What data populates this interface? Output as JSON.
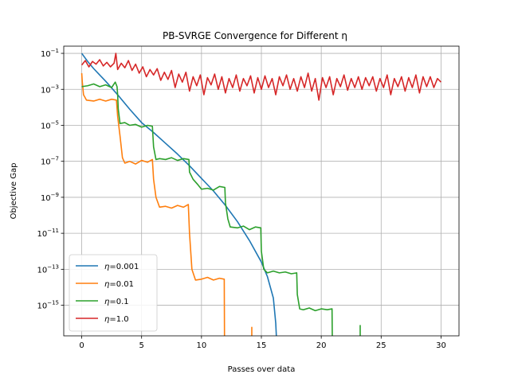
{
  "chart_data": {
    "type": "line",
    "title": "PB-SVRGE Convergence for Different η",
    "xlabel": "Passes over data",
    "ylabel": "Objective Gap",
    "xlim": [
      -1.5,
      31.5
    ],
    "ylim_log10": [
      -16.7,
      -0.6
    ],
    "yscale": "log",
    "grid": true,
    "legend_position": "lower-left",
    "x_ticks": [
      0,
      5,
      10,
      15,
      20,
      25,
      30
    ],
    "y_ticks": [
      {
        "exp": -1,
        "label": "10−1"
      },
      {
        "exp": -3,
        "label": "10−3"
      },
      {
        "exp": -5,
        "label": "10−5"
      },
      {
        "exp": -7,
        "label": "10−7"
      },
      {
        "exp": -9,
        "label": "10−9"
      },
      {
        "exp": -11,
        "label": "10−11"
      },
      {
        "exp": -13,
        "label": "10−13"
      },
      {
        "exp": -15,
        "label": "10−15"
      }
    ],
    "series": [
      {
        "name": "η=0.001",
        "color": "#1f77b4",
        "points_log10": [
          [
            0,
            -1.0
          ],
          [
            0.5,
            -1.45
          ],
          [
            1,
            -1.85
          ],
          [
            1.5,
            -2.2
          ],
          [
            2,
            -2.55
          ],
          [
            3,
            -3.3
          ],
          [
            4,
            -4.1
          ],
          [
            5,
            -4.85
          ],
          [
            6,
            -5.4
          ],
          [
            7,
            -6.0
          ],
          [
            8,
            -6.6
          ],
          [
            9,
            -7.25
          ],
          [
            10,
            -7.95
          ],
          [
            11,
            -8.65
          ],
          [
            12,
            -9.45
          ],
          [
            13,
            -10.35
          ],
          [
            14,
            -11.4
          ],
          [
            15,
            -12.6
          ],
          [
            15.5,
            -13.4
          ],
          [
            16,
            -14.6
          ],
          [
            16.2,
            -16.0
          ],
          [
            16.25,
            -16.7
          ]
        ]
      },
      {
        "name": "η=0.01",
        "color": "#ff7f0e",
        "points_log10": [
          [
            0,
            -2.1
          ],
          [
            0.05,
            -2.6
          ],
          [
            0.15,
            -3.3
          ],
          [
            0.4,
            -3.6
          ],
          [
            1,
            -3.65
          ],
          [
            1.5,
            -3.55
          ],
          [
            2,
            -3.65
          ],
          [
            2.5,
            -3.55
          ],
          [
            2.9,
            -3.6
          ],
          [
            3.0,
            -4.5
          ],
          [
            3.2,
            -5.6
          ],
          [
            3.4,
            -6.8
          ],
          [
            3.6,
            -7.1
          ],
          [
            4,
            -7.0
          ],
          [
            4.5,
            -7.15
          ],
          [
            5,
            -6.95
          ],
          [
            5.5,
            -7.05
          ],
          [
            5.9,
            -6.9
          ],
          [
            6.0,
            -8.0
          ],
          [
            6.2,
            -9.0
          ],
          [
            6.5,
            -9.55
          ],
          [
            7,
            -9.5
          ],
          [
            7.5,
            -9.6
          ],
          [
            8,
            -9.45
          ],
          [
            8.5,
            -9.55
          ],
          [
            8.9,
            -9.4
          ],
          [
            9.0,
            -11.0
          ],
          [
            9.2,
            -13.0
          ],
          [
            9.5,
            -13.6
          ],
          [
            10,
            -13.55
          ],
          [
            10.5,
            -13.45
          ],
          [
            11,
            -13.6
          ],
          [
            11.5,
            -13.5
          ],
          [
            11.9,
            -13.55
          ],
          [
            11.92,
            -16.7
          ]
        ],
        "extra_segments_log10": [
          [
            [
              14.2,
              -16.2
            ],
            [
              14.2,
              -16.7
            ]
          ]
        ]
      },
      {
        "name": "η=0.1",
        "color": "#2ca02c",
        "points_log10": [
          [
            0,
            -2.85
          ],
          [
            0.5,
            -2.8
          ],
          [
            1,
            -2.7
          ],
          [
            1.5,
            -2.85
          ],
          [
            2,
            -2.75
          ],
          [
            2.5,
            -2.9
          ],
          [
            2.8,
            -2.6
          ],
          [
            2.95,
            -2.85
          ],
          [
            3.0,
            -3.3
          ],
          [
            3.05,
            -4.1
          ],
          [
            3.2,
            -4.9
          ],
          [
            3.6,
            -4.85
          ],
          [
            4,
            -5.0
          ],
          [
            4.5,
            -4.95
          ],
          [
            5,
            -5.1
          ],
          [
            5.5,
            -5.0
          ],
          [
            5.9,
            -5.05
          ],
          [
            6.0,
            -6.2
          ],
          [
            6.2,
            -6.9
          ],
          [
            6.5,
            -6.85
          ],
          [
            7,
            -6.9
          ],
          [
            7.5,
            -6.8
          ],
          [
            8,
            -6.95
          ],
          [
            8.5,
            -6.85
          ],
          [
            8.95,
            -6.9
          ],
          [
            9.0,
            -7.6
          ],
          [
            9.3,
            -8.0
          ],
          [
            9.7,
            -8.3
          ],
          [
            10,
            -8.55
          ],
          [
            10.5,
            -8.5
          ],
          [
            11,
            -8.6
          ],
          [
            11.5,
            -8.4
          ],
          [
            11.95,
            -8.45
          ],
          [
            12.0,
            -9.3
          ],
          [
            12.2,
            -10.2
          ],
          [
            12.4,
            -10.65
          ],
          [
            13,
            -10.7
          ],
          [
            13.5,
            -10.6
          ],
          [
            14,
            -10.8
          ],
          [
            14.5,
            -10.65
          ],
          [
            14.95,
            -10.7
          ],
          [
            15.0,
            -12.0
          ],
          [
            15.2,
            -13.0
          ],
          [
            15.5,
            -13.2
          ],
          [
            16,
            -13.1
          ],
          [
            16.5,
            -13.2
          ],
          [
            17,
            -13.15
          ],
          [
            17.5,
            -13.25
          ],
          [
            17.95,
            -13.2
          ],
          [
            18.0,
            -14.4
          ],
          [
            18.2,
            -15.2
          ],
          [
            18.5,
            -15.25
          ],
          [
            19,
            -15.15
          ],
          [
            19.5,
            -15.3
          ],
          [
            20,
            -15.2
          ],
          [
            20.5,
            -15.25
          ],
          [
            20.9,
            -15.2
          ],
          [
            20.92,
            -16.7
          ]
        ],
        "extra_segments_log10": [
          [
            [
              23.25,
              -16.1
            ],
            [
              23.25,
              -16.7
            ]
          ]
        ]
      },
      {
        "name": "η=1.0",
        "color": "#d62728",
        "points_log10": [
          [
            0,
            -1.65
          ],
          [
            0.3,
            -1.4
          ],
          [
            0.6,
            -1.75
          ],
          [
            0.9,
            -1.45
          ],
          [
            1.2,
            -1.6
          ],
          [
            1.5,
            -1.35
          ],
          [
            1.8,
            -1.7
          ],
          [
            2.1,
            -1.5
          ],
          [
            2.4,
            -1.75
          ],
          [
            2.7,
            -1.55
          ],
          [
            2.85,
            -1.0
          ],
          [
            3.0,
            -1.9
          ],
          [
            3.3,
            -1.55
          ],
          [
            3.6,
            -1.8
          ],
          [
            3.9,
            -1.4
          ],
          [
            4.2,
            -1.95
          ],
          [
            4.5,
            -1.6
          ],
          [
            4.8,
            -2.1
          ],
          [
            5.1,
            -1.75
          ],
          [
            5.4,
            -2.3
          ],
          [
            5.7,
            -1.9
          ],
          [
            6.0,
            -2.2
          ],
          [
            6.3,
            -1.85
          ],
          [
            6.6,
            -2.5
          ],
          [
            6.9,
            -2.05
          ],
          [
            7.2,
            -2.45
          ],
          [
            7.5,
            -1.95
          ],
          [
            7.8,
            -2.9
          ],
          [
            8.1,
            -2.15
          ],
          [
            8.4,
            -2.6
          ],
          [
            8.7,
            -2.05
          ],
          [
            9.0,
            -3.1
          ],
          [
            9.3,
            -2.3
          ],
          [
            9.6,
            -2.8
          ],
          [
            9.9,
            -2.2
          ],
          [
            10.2,
            -3.3
          ],
          [
            10.5,
            -2.35
          ],
          [
            10.8,
            -2.75
          ],
          [
            11.1,
            -2.15
          ],
          [
            11.4,
            -3.0
          ],
          [
            11.7,
            -2.3
          ],
          [
            12.0,
            -3.2
          ],
          [
            12.3,
            -2.4
          ],
          [
            12.6,
            -2.9
          ],
          [
            12.9,
            -2.2
          ],
          [
            13.2,
            -3.1
          ],
          [
            13.5,
            -2.4
          ],
          [
            13.8,
            -2.8
          ],
          [
            14.1,
            -2.25
          ],
          [
            14.4,
            -3.2
          ],
          [
            14.7,
            -2.35
          ],
          [
            15.0,
            -3.0
          ],
          [
            15.3,
            -2.25
          ],
          [
            15.6,
            -2.9
          ],
          [
            15.9,
            -2.4
          ],
          [
            16.2,
            -3.3
          ],
          [
            16.5,
            -2.3
          ],
          [
            16.8,
            -2.8
          ],
          [
            17.1,
            -2.2
          ],
          [
            17.4,
            -3.0
          ],
          [
            17.7,
            -2.4
          ],
          [
            18.0,
            -3.1
          ],
          [
            18.3,
            -2.3
          ],
          [
            18.6,
            -2.9
          ],
          [
            18.9,
            -2.1
          ],
          [
            19.2,
            -3.1
          ],
          [
            19.5,
            -2.4
          ],
          [
            19.8,
            -3.6
          ],
          [
            20.1,
            -2.35
          ],
          [
            20.4,
            -2.9
          ],
          [
            20.7,
            -2.3
          ],
          [
            21.0,
            -3.3
          ],
          [
            21.3,
            -2.4
          ],
          [
            21.6,
            -2.85
          ],
          [
            21.9,
            -2.2
          ],
          [
            22.2,
            -3.05
          ],
          [
            22.5,
            -2.4
          ],
          [
            22.8,
            -2.9
          ],
          [
            23.1,
            -2.3
          ],
          [
            23.4,
            -3.0
          ],
          [
            23.7,
            -2.35
          ],
          [
            24.0,
            -2.8
          ],
          [
            24.3,
            -2.3
          ],
          [
            24.6,
            -3.1
          ],
          [
            24.9,
            -2.4
          ],
          [
            25.2,
            -2.9
          ],
          [
            25.5,
            -2.2
          ],
          [
            25.8,
            -3.3
          ],
          [
            26.1,
            -2.4
          ],
          [
            26.4,
            -2.85
          ],
          [
            26.7,
            -2.3
          ],
          [
            27.0,
            -3.1
          ],
          [
            27.3,
            -2.35
          ],
          [
            27.6,
            -2.9
          ],
          [
            27.9,
            -2.2
          ],
          [
            28.2,
            -3.2
          ],
          [
            28.5,
            -2.3
          ],
          [
            28.8,
            -2.85
          ],
          [
            29.1,
            -2.3
          ],
          [
            29.4,
            -2.9
          ],
          [
            29.7,
            -2.4
          ],
          [
            30.0,
            -2.6
          ]
        ]
      }
    ]
  }
}
